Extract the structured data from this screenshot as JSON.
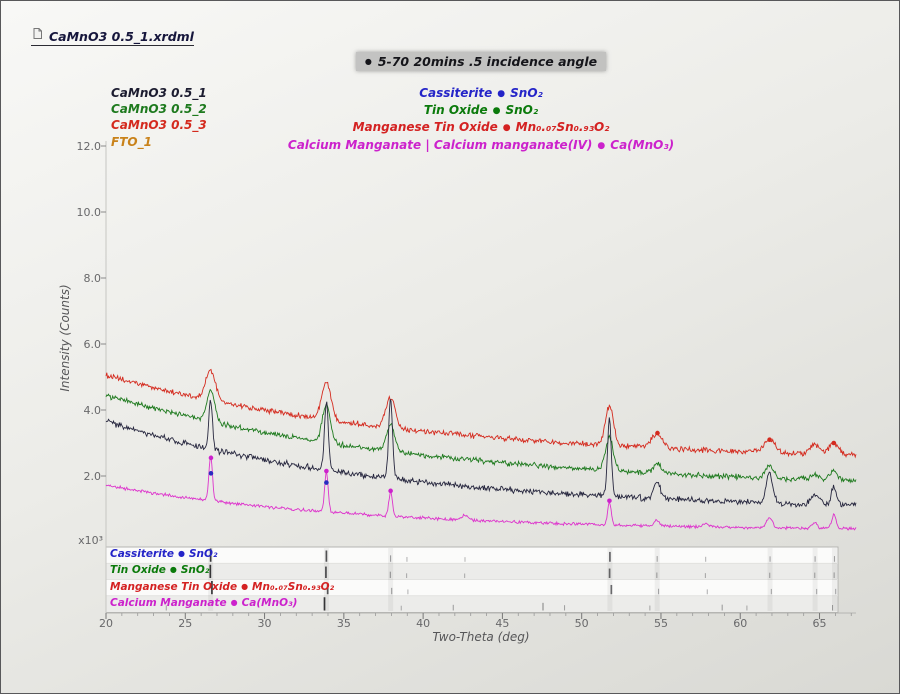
{
  "window": {
    "title": "CaMnO3 0.5_1.xrdml"
  },
  "annotation": {
    "bullet": "●",
    "text": "5-70 20mins .5 incidence angle"
  },
  "scan_legend": [
    {
      "label": "CaMnO3 0.5_1",
      "color": "#1c1c30"
    },
    {
      "label": "CaMnO3 0.5_2",
      "color": "#1e7a1e"
    },
    {
      "label": "CaMnO3 0.5_3",
      "color": "#d42a1e"
    },
    {
      "label": "FTO_1",
      "color": "#c9821a"
    }
  ],
  "phase_legend": [
    {
      "name": "Cassiterite",
      "bullet": "●",
      "formula": "SnO₂",
      "color": "#2424c8"
    },
    {
      "name": "Tin Oxide",
      "bullet": "●",
      "formula": "SnO₂",
      "color": "#0b7a0b"
    },
    {
      "name": "Manganese Tin Oxide",
      "bullet": "●",
      "formula": "Mn₀.₀₇Sn₀.₉₃O₂",
      "color": "#d42222"
    },
    {
      "name": "Calcium Manganate | Calcium manganate(IV)",
      "bullet": "●",
      "formula": "Ca(MnO₃)",
      "color": "#cc22cc"
    }
  ],
  "axes": {
    "x_label": "Two-Theta (deg)",
    "y_label": "Intensity (Counts)",
    "y_unit": "x10³",
    "x_ticks": [
      20,
      25,
      30,
      35,
      40,
      45,
      50,
      55,
      60,
      65
    ],
    "y_ticks": [
      "2.0",
      "4.0",
      "6.0",
      "8.0",
      "10.0",
      "12.0"
    ],
    "x_range": [
      20,
      67.3
    ],
    "y_range": [
      0,
      12.2
    ]
  },
  "chart_data": {
    "type": "line",
    "title": "5-70 20mins .5 incidence angle",
    "xlabel": "Two-Theta (deg)",
    "ylabel": "Intensity (Counts), units of 10^3",
    "x_range": [
      20,
      67.3
    ],
    "y_range": [
      0,
      12.2
    ],
    "grid": false,
    "series": [
      {
        "name": "CaMnO3 0.5_3",
        "color": "#d42a1e",
        "baseline_start": 5.05,
        "baseline_end": 2.38,
        "decay": 20,
        "noise": 0.055,
        "peak_width": 0.3,
        "peaks": [
          [
            26.6,
            0.9
          ],
          [
            33.9,
            1.1
          ],
          [
            37.95,
            0.9
          ],
          [
            51.75,
            1.2,
            0.25
          ],
          [
            54.75,
            0.42,
            0.35
          ],
          [
            61.85,
            0.38,
            0.35
          ],
          [
            64.7,
            0.28,
            0.3
          ],
          [
            65.9,
            0.35,
            0.3
          ]
        ]
      },
      {
        "name": "CaMnO3 0.5_2",
        "color": "#1e7a1e",
        "baseline_start": 4.45,
        "baseline_end": 1.58,
        "decay": 20,
        "noise": 0.055,
        "peak_width": 0.25,
        "peaks": [
          [
            26.6,
            0.95
          ],
          [
            33.9,
            1.15
          ],
          [
            37.95,
            0.8
          ],
          [
            51.75,
            1.0
          ],
          [
            54.75,
            0.3
          ],
          [
            61.85,
            0.4
          ],
          [
            64.7,
            0.15
          ],
          [
            65.9,
            0.3
          ]
        ]
      },
      {
        "name": "CaMnO3 0.5_1",
        "color": "#26263e",
        "baseline_start": 3.65,
        "baseline_end": 0.92,
        "decay": 18,
        "noise": 0.06,
        "peak_width": 0.11,
        "peaks": [
          [
            26.6,
            1.5
          ],
          [
            33.9,
            2.1,
            0.12
          ],
          [
            37.95,
            2.4,
            0.12
          ],
          [
            51.75,
            2.35,
            0.12
          ],
          [
            54.75,
            0.55,
            0.2
          ],
          [
            61.85,
            0.9,
            0.2
          ],
          [
            64.7,
            0.3,
            0.25
          ],
          [
            65.9,
            0.55,
            0.15
          ]
        ]
      },
      {
        "name": "FTO_1",
        "color": "#dd33cc",
        "baseline_start": 1.72,
        "baseline_end": 0.33,
        "decay": 16,
        "noise": 0.03,
        "peak_width": 0.11,
        "peaks": [
          [
            26.6,
            1.35
          ],
          [
            33.9,
            1.2
          ],
          [
            37.95,
            0.75
          ],
          [
            42.6,
            0.14,
            0.2
          ],
          [
            51.75,
            0.68
          ],
          [
            54.75,
            0.16,
            0.18
          ],
          [
            57.8,
            0.1,
            0.2
          ],
          [
            61.85,
            0.3,
            0.18
          ],
          [
            64.7,
            0.18,
            0.15
          ],
          [
            65.9,
            0.42,
            0.13
          ]
        ]
      }
    ],
    "peak_markers": [
      {
        "x": 26.62,
        "y": 2.55,
        "color": "#cc22cc"
      },
      {
        "x": 26.62,
        "y": 2.08,
        "color": "#2a2ac0"
      },
      {
        "x": 33.9,
        "y": 2.15,
        "color": "#cc22cc"
      },
      {
        "x": 33.9,
        "y": 1.8,
        "color": "#2a2ac0"
      },
      {
        "x": 37.95,
        "y": 1.55,
        "color": "#cc22cc"
      },
      {
        "x": 51.75,
        "y": 1.25,
        "color": "#cc22cc"
      },
      {
        "x": 54.78,
        "y": 3.3,
        "color": "#d42a1e"
      },
      {
        "x": 61.85,
        "y": 3.1,
        "color": "#d42a1e"
      },
      {
        "x": 65.9,
        "y": 3.0,
        "color": "#d42a1e"
      }
    ],
    "match_stripes": [
      26.6,
      33.9,
      37.95,
      51.78,
      54.76,
      61.88,
      64.72,
      65.94
    ],
    "reference_patterns": [
      {
        "name": "Cassiterite",
        "bullet": "●",
        "formula": "SnO₂",
        "color": "#2424c8",
        "ticks": [
          [
            26.6,
            100
          ],
          [
            33.9,
            78
          ],
          [
            37.95,
            24
          ],
          [
            38.98,
            6
          ],
          [
            42.64,
            4
          ],
          [
            51.78,
            62
          ],
          [
            54.76,
            16
          ],
          [
            57.82,
            8
          ],
          [
            61.88,
            13
          ],
          [
            64.72,
            14
          ],
          [
            65.94,
            16
          ]
        ]
      },
      {
        "name": "Tin Oxide",
        "bullet": "●",
        "formula": "SnO₂",
        "color": "#0b7a0b",
        "ticks": [
          [
            26.58,
            100
          ],
          [
            33.87,
            80
          ],
          [
            37.93,
            23
          ],
          [
            38.96,
            5
          ],
          [
            42.62,
            3
          ],
          [
            51.76,
            58
          ],
          [
            54.74,
            14
          ],
          [
            57.8,
            7
          ],
          [
            61.86,
            12
          ],
          [
            64.7,
            13
          ],
          [
            65.92,
            15
          ]
        ]
      },
      {
        "name": "Manganese Tin Oxide",
        "bullet": "●",
        "formula": "Mn₀.₀₇Sn₀.₉₃O₂",
        "color": "#d42222",
        "ticks": [
          [
            26.68,
            100
          ],
          [
            33.98,
            74
          ],
          [
            38.02,
            24
          ],
          [
            39.04,
            6
          ],
          [
            51.87,
            56
          ],
          [
            54.85,
            14
          ],
          [
            57.92,
            7
          ],
          [
            61.96,
            12
          ],
          [
            64.82,
            12
          ],
          [
            66.02,
            13
          ]
        ]
      },
      {
        "name": "Calcium Manganate",
        "bullet": "●",
        "formula": "Ca(MnO₃)",
        "color": "#cc22cc",
        "ticks": [
          [
            23.8,
            10
          ],
          [
            33.78,
            100
          ],
          [
            38.62,
            6
          ],
          [
            41.9,
            16
          ],
          [
            47.56,
            38
          ],
          [
            48.92,
            12
          ],
          [
            54.3,
            8
          ],
          [
            58.86,
            18
          ],
          [
            60.42,
            8
          ],
          [
            65.82,
            14
          ]
        ]
      }
    ]
  }
}
